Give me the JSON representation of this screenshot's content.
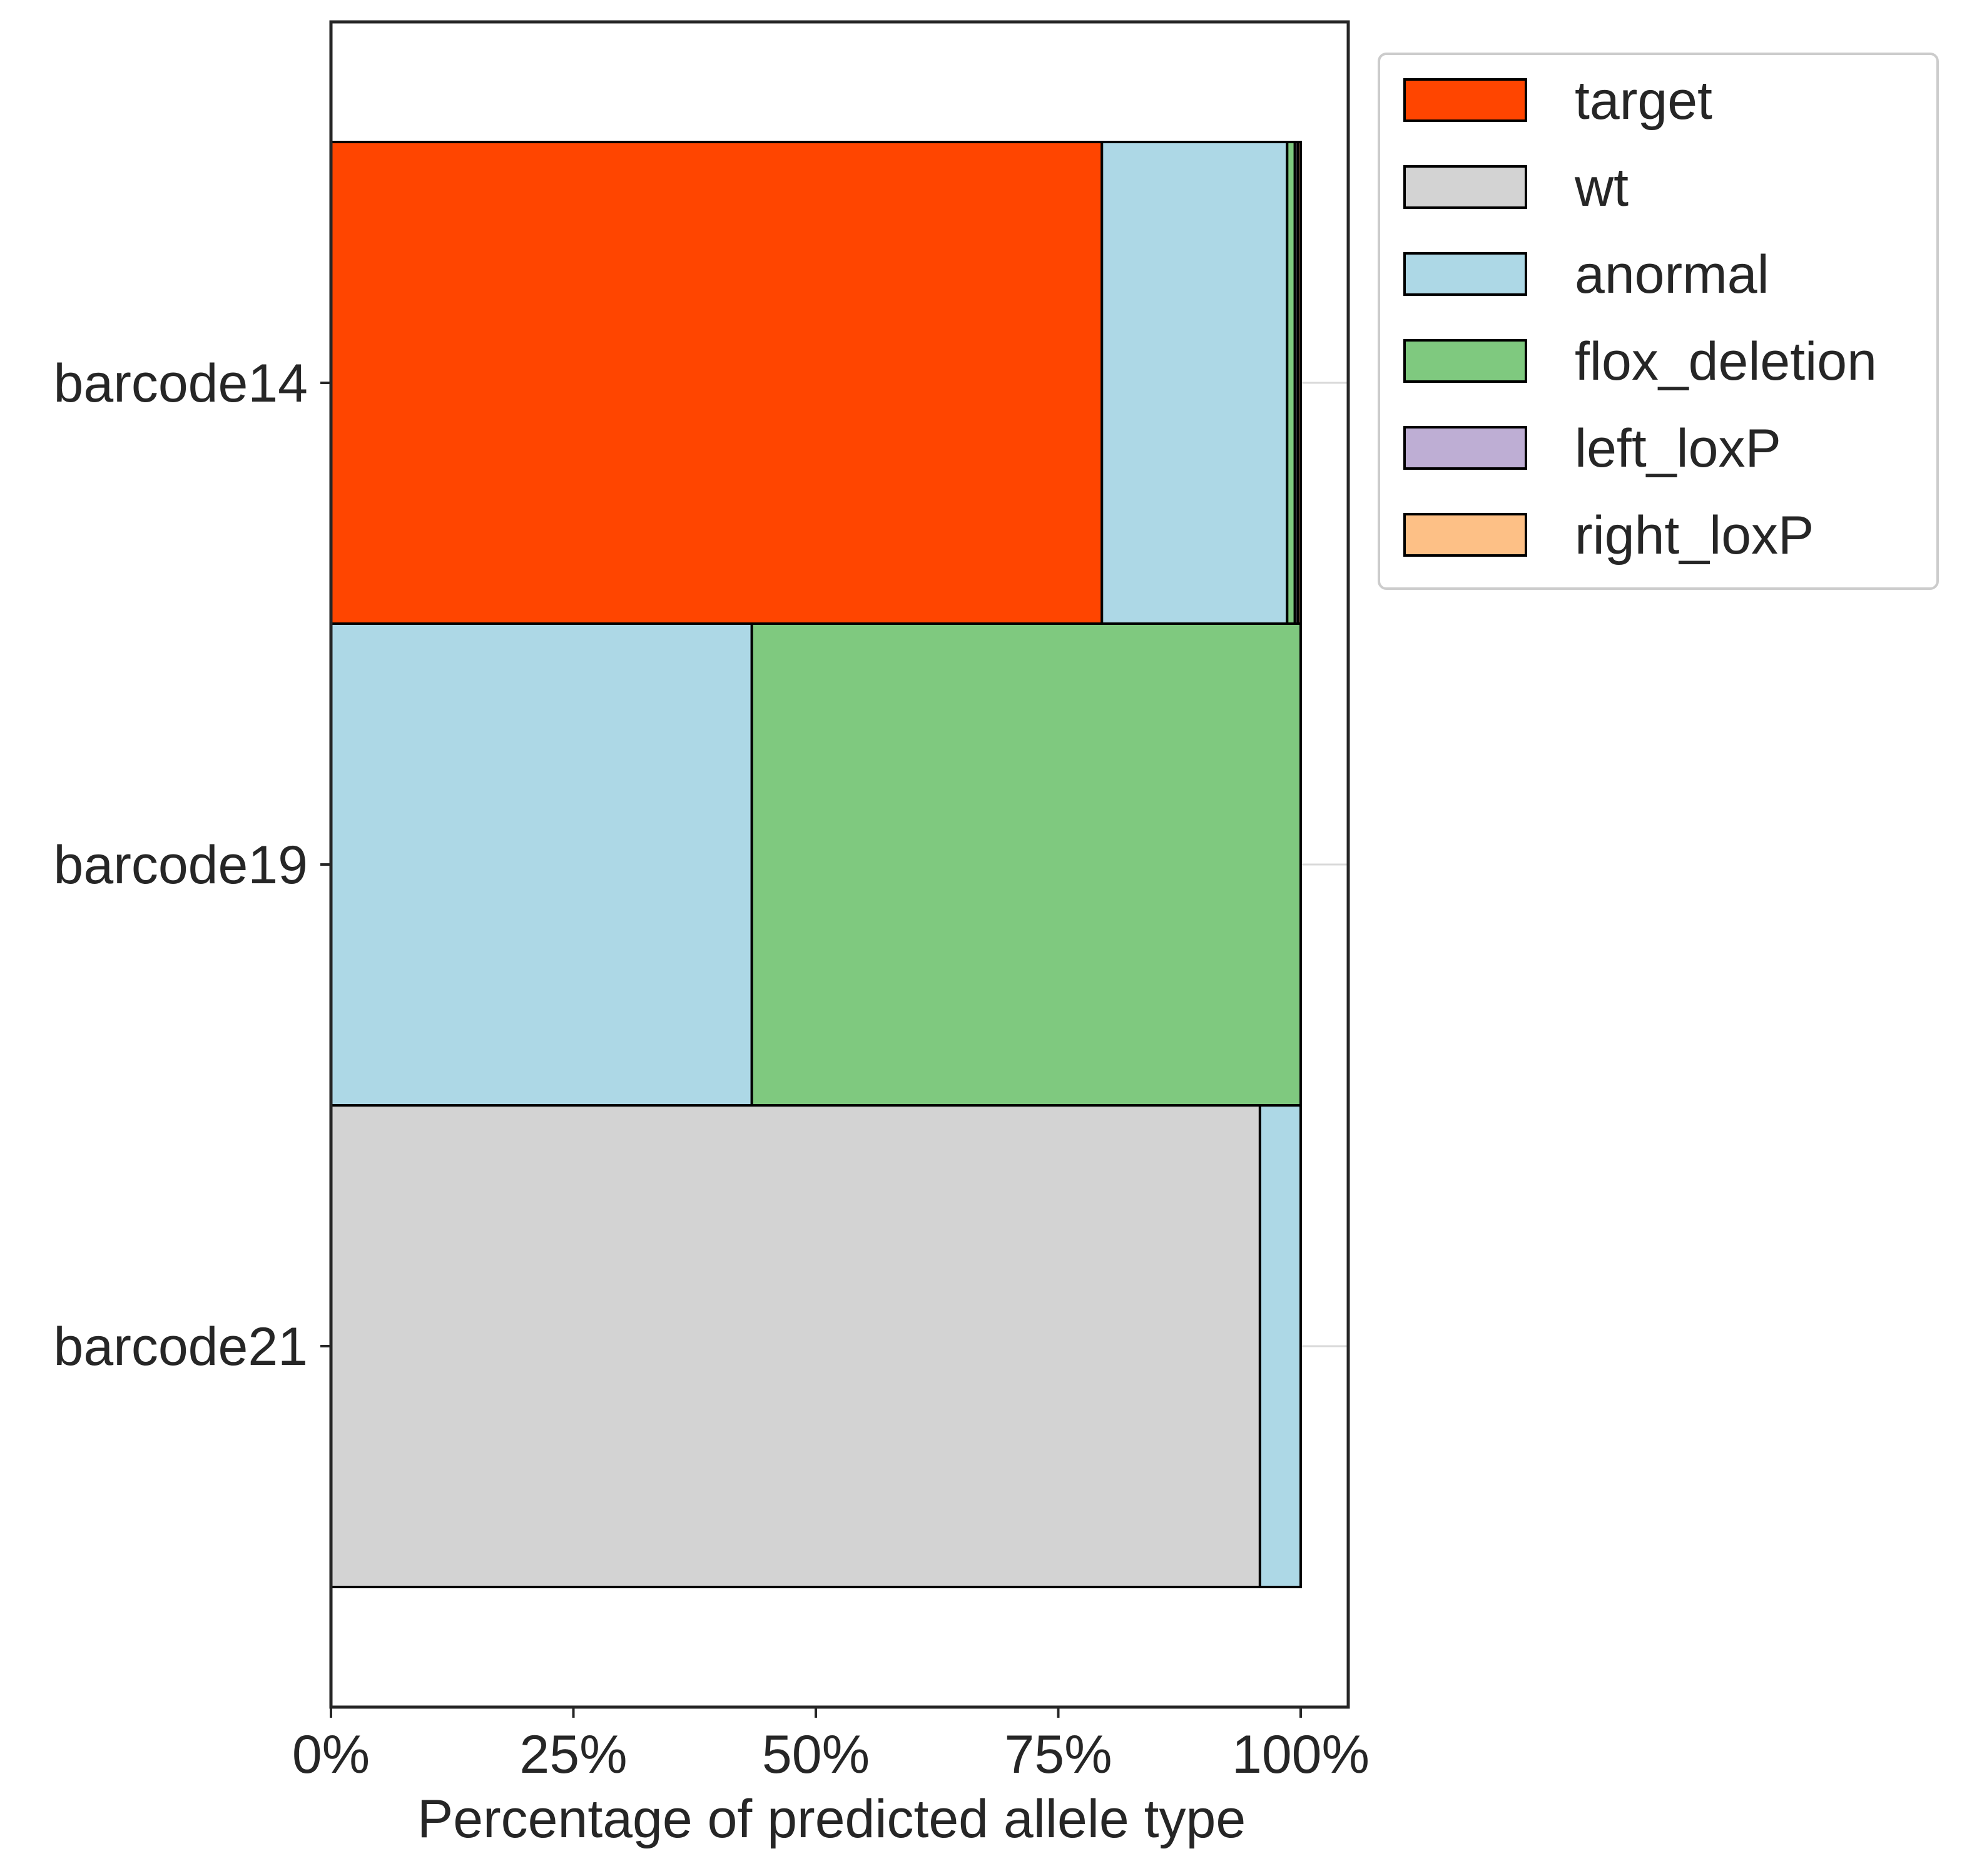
{
  "chart_data": {
    "type": "bar",
    "orientation": "horizontal",
    "stacked": true,
    "categories": [
      "barcode14",
      "barcode19",
      "barcode21"
    ],
    "series": [
      {
        "name": "target",
        "color": "#FF4500",
        "values": [
          79.5,
          0,
          0
        ]
      },
      {
        "name": "wt",
        "color": "#D3D3D3",
        "values": [
          0,
          0,
          95.8
        ]
      },
      {
        "name": "anormal",
        "color": "#ADD8E6",
        "values": [
          19.1,
          43.4,
          4.2
        ]
      },
      {
        "name": "flox_deletion",
        "color": "#7FC97F",
        "values": [
          0.8,
          56.6,
          0
        ]
      },
      {
        "name": "left_loxP",
        "color": "#BEAED4",
        "values": [
          0.3,
          0,
          0
        ]
      },
      {
        "name": "right_loxP",
        "color": "#FDC086",
        "values": [
          0.3,
          0,
          0
        ]
      }
    ],
    "xlabel": "Percentage of predicted allele type",
    "ylabel": "",
    "xlim": [
      0,
      105
    ],
    "xticks": [
      0,
      25,
      50,
      75,
      100
    ],
    "xtick_labels": [
      "0%",
      "25%",
      "50%",
      "75%",
      "100%"
    ],
    "grid": "horizontal",
    "legend_position": "outside-top-right"
  }
}
